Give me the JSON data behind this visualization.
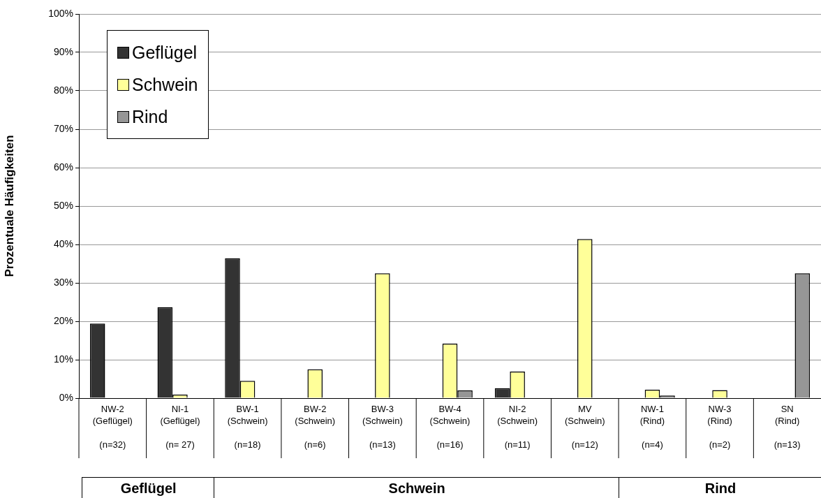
{
  "chart_data": {
    "type": "bar",
    "ylabel": "Prozentuale Häufigkeiten",
    "categories": [
      "NW-2\n(Geflügel)\n(n=32)",
      "NI-1\n(Geflügel)\n(n= 27)",
      "BW-1\n(Schwein)\n(n=18)",
      "BW-2\n(Schwein)\n(n=6)",
      "BW-3\n(Schwein)\n(n=13)",
      "BW-4\n(Schwein)\n(n=16)",
      "NI-2\n(Schwein)\n(n=11)",
      "MV\n(Schwein)\n(n=12)",
      "NW-1\n(Rind)\n(n=4)",
      "NW-3\n(Rind)\n(n=2)",
      "SN\n(Rind)\n(n=13)"
    ],
    "series": [
      {
        "name": "Geflügel",
        "color": "#333333",
        "values": [
          19.4,
          23.7,
          36.4,
          null,
          null,
          null,
          2.6,
          null,
          null,
          null,
          null
        ]
      },
      {
        "name": "Schwein",
        "color": "#ffff99",
        "values": [
          null,
          0.9,
          4.5,
          7.5,
          32.5,
          14.2,
          6.9,
          41.4,
          2.2,
          2.1,
          null
        ]
      },
      {
        "name": "Rind",
        "color": "#969696",
        "values": [
          null,
          null,
          null,
          null,
          null,
          2.0,
          null,
          null,
          0.7,
          null,
          32.5
        ]
      }
    ],
    "ylim": [
      0,
      100
    ],
    "yticks": [
      {
        "value": 0,
        "label": "0%"
      },
      {
        "value": 10,
        "label": "10%"
      },
      {
        "value": 20,
        "label": "20%"
      },
      {
        "value": 30,
        "label": "30%"
      },
      {
        "value": 40,
        "label": "40%"
      },
      {
        "value": 50,
        "label": "50%"
      },
      {
        "value": 60,
        "label": "60%"
      },
      {
        "value": 70,
        "label": "70%"
      },
      {
        "value": 80,
        "label": "80%"
      },
      {
        "value": 90,
        "label": "90%"
      },
      {
        "value": 100,
        "label": "100%"
      }
    ],
    "grid": "y",
    "legend": "top left",
    "annotations": [
      "Geflügel",
      "Schwein",
      "Rind"
    ]
  }
}
